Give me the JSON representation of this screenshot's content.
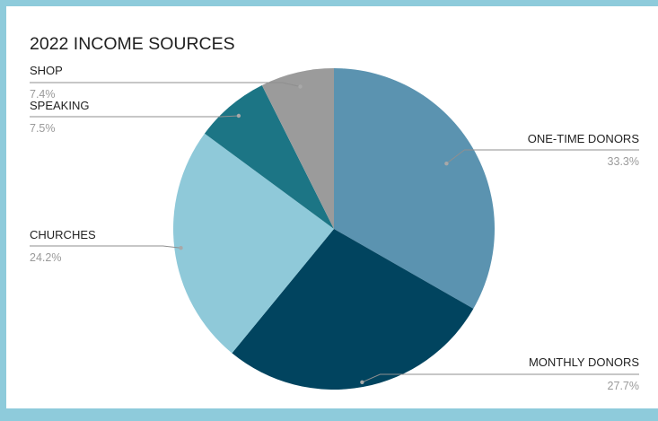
{
  "chart_data": {
    "type": "pie",
    "title": "2022 INCOME SOURCES",
    "slices": [
      {
        "label": "ONE-TIME DONORS",
        "value": 33.3,
        "display": "33.3%",
        "color": "#5b93b0"
      },
      {
        "label": "MONTHLY DONORS",
        "value": 27.7,
        "display": "27.7%",
        "color": "#01445f"
      },
      {
        "label": "CHURCHES",
        "value": 24.2,
        "display": "24.2%",
        "color": "#8fc9d9"
      },
      {
        "label": "SPEAKING",
        "value": 7.5,
        "display": "7.5%",
        "color": "#1c7585"
      },
      {
        "label": "SHOP",
        "value": 7.4,
        "display": "7.4%",
        "color": "#9b9b9b"
      }
    ],
    "start_angle_deg": 0,
    "direction": "clockwise",
    "legend": "none"
  }
}
